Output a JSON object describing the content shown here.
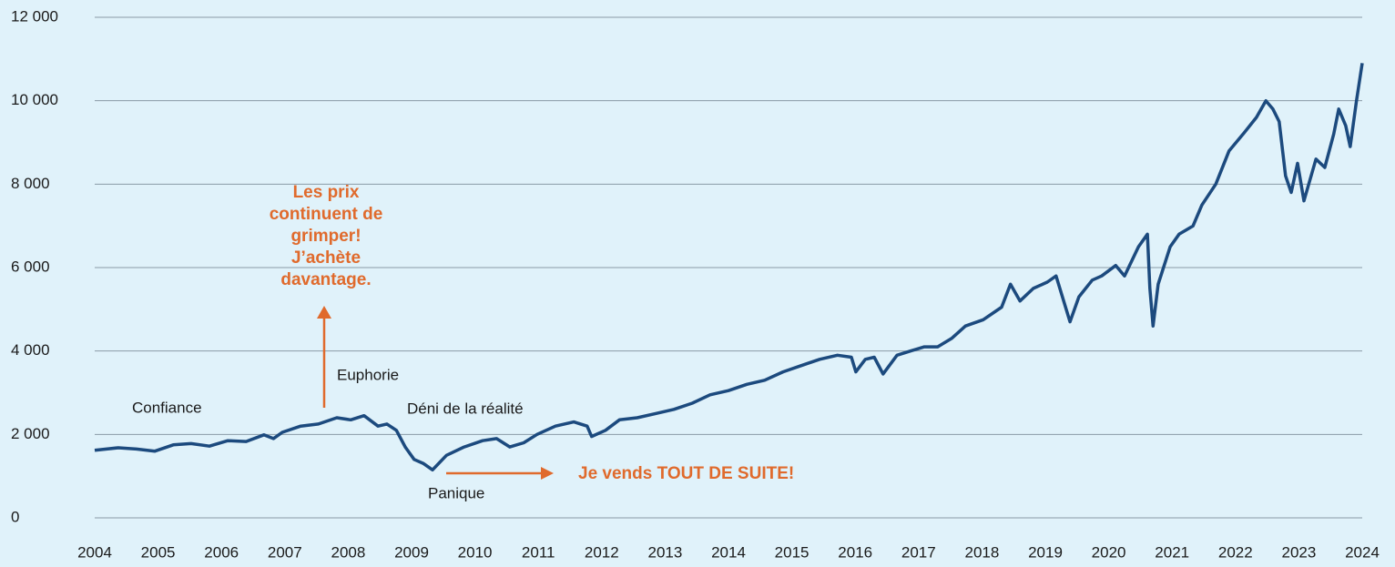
{
  "chart_data": {
    "type": "line",
    "x": [
      2004.0,
      2004.37,
      2004.66,
      2004.95,
      2005.24,
      2005.52,
      2005.81,
      2006.1,
      2006.39,
      2006.67,
      2006.82,
      2006.96,
      2007.25,
      2007.53,
      2007.82,
      2008.04,
      2008.25,
      2008.47,
      2008.61,
      2008.76,
      2008.9,
      2009.04,
      2009.19,
      2009.33,
      2009.55,
      2009.83,
      2010.12,
      2010.34,
      2010.55,
      2010.77,
      2010.98,
      2011.27,
      2011.56,
      2011.77,
      2011.84,
      2012.06,
      2012.28,
      2012.56,
      2012.85,
      2013.14,
      2013.43,
      2013.71,
      2014.0,
      2014.29,
      2014.57,
      2014.86,
      2015.15,
      2015.44,
      2015.72,
      2015.94,
      2016.01,
      2016.16,
      2016.3,
      2016.44,
      2016.66,
      2016.87,
      2017.09,
      2017.3,
      2017.52,
      2017.74,
      2018.02,
      2018.31,
      2018.45,
      2018.6,
      2018.81,
      2019.03,
      2019.17,
      2019.39,
      2019.53,
      2019.74,
      2019.89,
      2020.11,
      2020.25,
      2020.47,
      2020.61,
      2020.65,
      2020.7,
      2020.78,
      2020.97,
      2021.11,
      2021.33,
      2021.47,
      2021.69,
      2021.9,
      2022.12,
      2022.33,
      2022.48,
      2022.59,
      2022.69,
      2022.79,
      2022.88,
      2022.98,
      2023.08,
      2023.27,
      2023.41,
      2023.55,
      2023.63,
      2023.74,
      2023.81,
      2023.91,
      2024.0
    ],
    "series": [
      {
        "color": "#1c4a7e",
        "values": [
          1620,
          1680,
          1650,
          1600,
          1750,
          1780,
          1720,
          1850,
          1830,
          1990,
          1900,
          2050,
          2200,
          2250,
          2400,
          2350,
          2450,
          2200,
          2250,
          2100,
          1700,
          1400,
          1300,
          1150,
          1500,
          1700,
          1850,
          1900,
          1700,
          1800,
          2000,
          2200,
          2300,
          2200,
          1950,
          2100,
          2350,
          2400,
          2500,
          2600,
          2750,
          2950,
          3050,
          3200,
          3300,
          3500,
          3650,
          3800,
          3900,
          3850,
          3500,
          3800,
          3850,
          3450,
          3900,
          4000,
          4100,
          4100,
          4300,
          4600,
          4750,
          5050,
          5600,
          5200,
          5500,
          5650,
          5800,
          4700,
          5300,
          5700,
          5800,
          6050,
          5800,
          6500,
          6800,
          5500,
          4600,
          5600,
          6500,
          6800,
          7000,
          7500,
          8000,
          8800,
          9200,
          9600,
          10000,
          9800,
          9500,
          8200,
          7800,
          8500,
          7600,
          8600,
          8400,
          9200,
          9800,
          9400,
          8900,
          10000,
          10900
        ]
      }
    ],
    "xlim": [
      2004,
      2024
    ],
    "xticks": [
      2004,
      2005,
      2006,
      2007,
      2008,
      2009,
      2010,
      2011,
      2012,
      2013,
      2014,
      2015,
      2016,
      2017,
      2018,
      2019,
      2020,
      2021,
      2022,
      2023,
      2024
    ],
    "ylim": [
      0,
      12000
    ],
    "yticks": [
      0,
      {
        "value": 2000,
        "label": "2 000"
      },
      {
        "value": 4000,
        "label": "4 000"
      },
      {
        "value": 6000,
        "label": "6 000"
      },
      {
        "value": 8000,
        "label": "8 000"
      },
      {
        "value": 10000,
        "label": "10 000"
      },
      {
        "value": 12000,
        "label": "12 000"
      }
    ],
    "grid": true,
    "annotations": [
      "Confiance",
      "Euphorie",
      "Déni de la réalité",
      "Panique",
      "Je vends TOUT DE SUITE!"
    ],
    "callout": [
      "Les prix",
      "continuent de",
      "grimper!",
      "J’achète",
      "davantage."
    ]
  }
}
